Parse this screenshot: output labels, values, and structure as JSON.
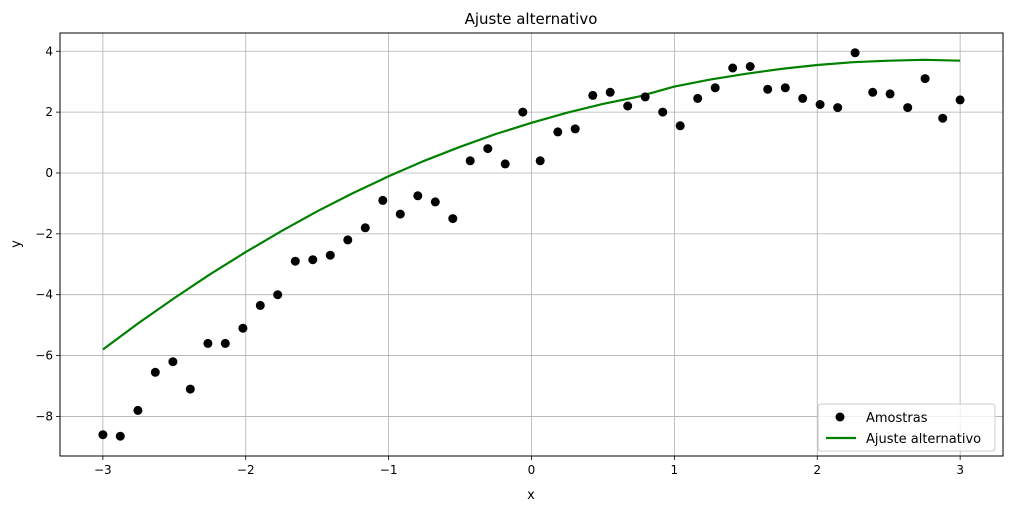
{
  "chart_data": {
    "type": "scatter",
    "title": "Ajuste alternativo",
    "xlabel": "x",
    "ylabel": "y",
    "xlim": [
      -3.3,
      3.3
    ],
    "ylim": [
      -9.3,
      4.6
    ],
    "xticks": [
      -3,
      -2,
      -1,
      0,
      1,
      2,
      3
    ],
    "xtick_labels": [
      "−3",
      "−2",
      "−1",
      "0",
      "1",
      "2",
      "3"
    ],
    "yticks": [
      -8,
      -6,
      -4,
      -2,
      0,
      2,
      4
    ],
    "ytick_labels": [
      "−8",
      "−6",
      "−4",
      "−2",
      "0",
      "2",
      "4"
    ],
    "grid": true,
    "legend_position": "lower-right",
    "series": [
      {
        "name": "Amostras",
        "kind": "scatter",
        "color": "#000000",
        "x": [
          -3.0,
          -2.878,
          -2.755,
          -2.633,
          -2.51,
          -2.388,
          -2.265,
          -2.143,
          -2.02,
          -1.898,
          -1.776,
          -1.653,
          -1.531,
          -1.408,
          -1.286,
          -1.163,
          -1.041,
          -0.918,
          -0.796,
          -0.673,
          -0.551,
          -0.429,
          -0.306,
          -0.184,
          -0.061,
          0.061,
          0.184,
          0.306,
          0.429,
          0.551,
          0.673,
          0.796,
          0.918,
          1.041,
          1.163,
          1.286,
          1.408,
          1.531,
          1.653,
          1.776,
          1.898,
          2.02,
          2.143,
          2.265,
          2.388,
          2.51,
          2.633,
          2.755,
          2.878,
          3.0
        ],
        "y": [
          -8.6,
          -8.65,
          -7.8,
          -6.55,
          -6.2,
          -7.1,
          -5.6,
          -5.6,
          -5.1,
          -4.35,
          -4.0,
          -2.9,
          -2.85,
          -2.7,
          -2.2,
          -1.8,
          -0.9,
          -1.35,
          -0.75,
          -0.95,
          -1.5,
          0.4,
          0.8,
          0.3,
          2.0,
          0.4,
          1.35,
          1.45,
          2.55,
          2.65,
          2.2,
          2.5,
          2.0,
          1.55,
          2.45,
          2.8,
          3.45,
          3.5,
          2.75,
          2.8,
          2.45,
          2.25,
          2.15,
          3.95,
          2.65,
          2.6,
          2.15,
          3.1,
          1.8,
          2.4
        ]
      },
      {
        "name": "Ajuste alternativo",
        "kind": "line",
        "color": "#008000",
        "x": [
          -3.0,
          -2.75,
          -2.5,
          -2.25,
          -2.0,
          -1.75,
          -1.5,
          -1.25,
          -1.0,
          -0.75,
          -0.5,
          -0.25,
          0.0,
          0.25,
          0.5,
          0.75,
          1.0,
          1.25,
          1.5,
          1.75,
          2.0,
          2.25,
          2.5,
          2.75,
          3.0
        ],
        "y": [
          -5.8,
          -4.93,
          -4.11,
          -3.33,
          -2.6,
          -1.91,
          -1.26,
          -0.66,
          -0.11,
          0.4,
          0.86,
          1.28,
          1.65,
          1.98,
          2.27,
          2.51,
          2.84,
          3.07,
          3.26,
          3.42,
          3.55,
          3.64,
          3.69,
          3.72,
          3.69
        ]
      }
    ]
  }
}
